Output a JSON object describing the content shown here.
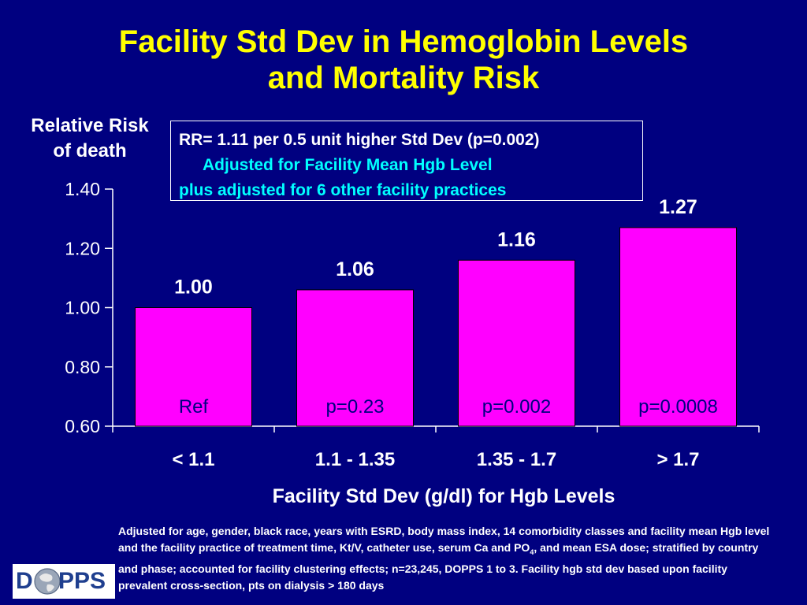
{
  "title_line1": "Facility Std Dev in Hemoglobin Levels",
  "title_line2": "and Mortality Risk",
  "annotation": {
    "line1": "RR= 1.11 per 0.5 unit higher Std Dev (p=0.002)",
    "line2": "Adjusted for Facility Mean Hgb Level",
    "line3": "plus adjusted for 6 other facility practices"
  },
  "footnote": {
    "part1": "Adjusted for age, gender, black race, years with ESRD, body mass index, 14 comorbidity classes and facility mean Hgb level and the facility practice of treatment time, Kt/V, catheter use, serum Ca and PO",
    "subscript": "4",
    "part2": ", and mean ESA dose; stratified by country and phase; accounted for facility clustering effects; n=23,245, DOPPS 1 to 3.  Facility hgb std dev based upon facility prevalent cross-section, pts on dialysis > 180 days"
  },
  "logo": {
    "left": "D",
    "right": "PPS",
    "icon": "globe-icon"
  },
  "colors": {
    "background": "#000080",
    "bar": "#FF00FF",
    "title": "#FFFF00",
    "annotation_highlight": "#00FFFF",
    "text": "#FFFFFF",
    "pvalue_text": "#000080"
  },
  "chart_data": {
    "type": "bar",
    "ylabel_line1": "Relative Risk",
    "ylabel_line2": "of death",
    "xlabel": "Facility Std Dev (g/dl) for Hgb Levels",
    "categories": [
      "< 1.1",
      "1.1 - 1.35",
      "1.35 - 1.7",
      "> 1.7"
    ],
    "values": [
      1.0,
      1.06,
      1.16,
      1.27
    ],
    "data_labels": [
      "1.00",
      "1.06",
      "1.16",
      "1.27"
    ],
    "p_values": [
      "Ref",
      "p=0.23",
      "p=0.002",
      "p=0.0008"
    ],
    "ylim": [
      0.6,
      1.4
    ],
    "yticks": [
      0.6,
      0.8,
      1.0,
      1.2,
      1.4
    ],
    "ytick_labels": [
      "0.60",
      "0.80",
      "1.00",
      "1.20",
      "1.40"
    ],
    "grid": false,
    "legend": "none"
  }
}
